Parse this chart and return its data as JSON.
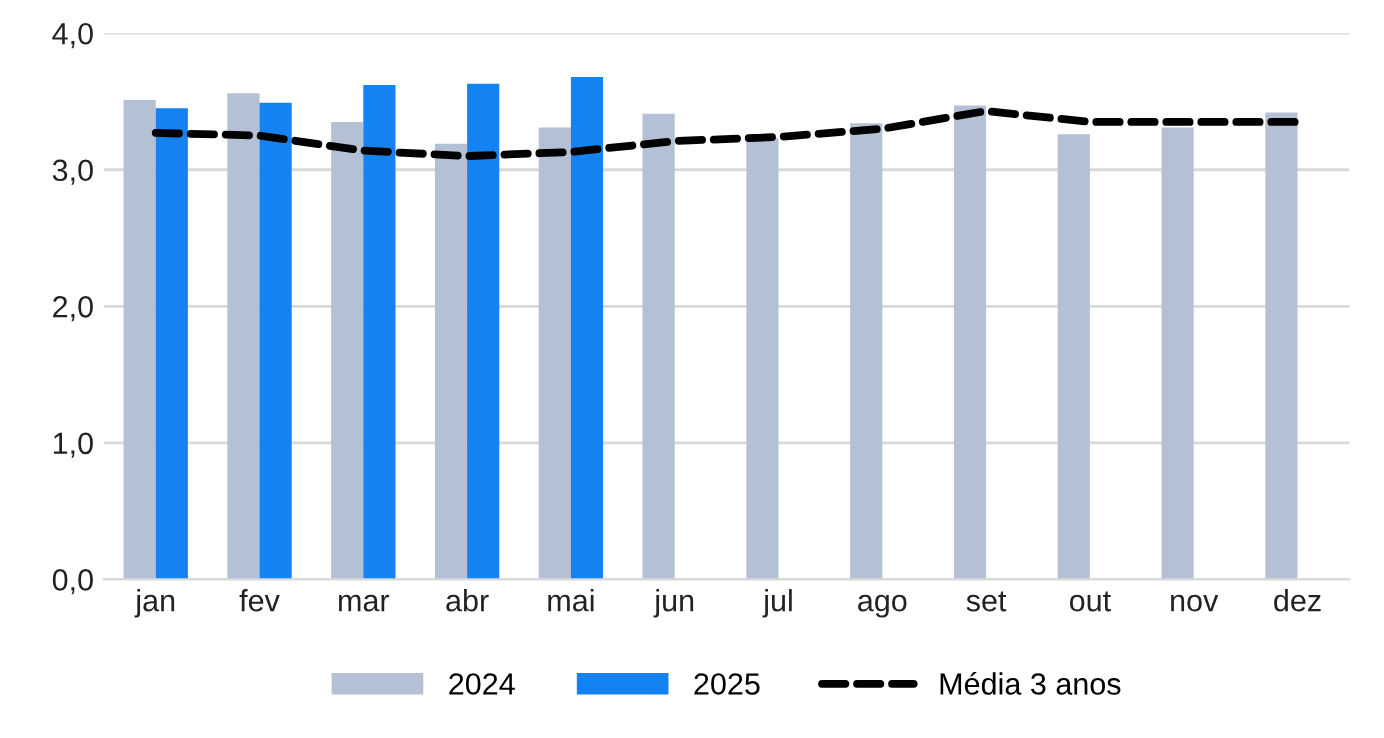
{
  "chart_data": {
    "type": "bar",
    "categories": [
      "jan",
      "fev",
      "mar",
      "abr",
      "mai",
      "jun",
      "jul",
      "ago",
      "set",
      "out",
      "nov",
      "dez"
    ],
    "series": [
      {
        "name": "2024",
        "color": "#b4c0d4",
        "values": [
          3.51,
          3.56,
          3.35,
          3.19,
          3.31,
          3.41,
          3.23,
          3.34,
          3.47,
          3.26,
          3.31,
          3.42
        ]
      },
      {
        "name": "2025",
        "color": "#1482f0",
        "values": [
          3.45,
          3.49,
          3.62,
          3.63,
          3.68,
          null,
          null,
          null,
          null,
          null,
          null,
          null
        ]
      },
      {
        "name": "Média 3 anos",
        "type": "line",
        "color": "#000000",
        "line_style": "dashed",
        "values": [
          3.27,
          3.25,
          3.14,
          3.1,
          3.13,
          3.21,
          3.24,
          3.3,
          3.43,
          3.35,
          3.35,
          3.35
        ]
      }
    ],
    "ylim": [
      0,
      4
    ],
    "yticks": [
      {
        "value": 0,
        "label": "0,0"
      },
      {
        "value": 1,
        "label": "1,0"
      },
      {
        "value": 2,
        "label": "2,0"
      },
      {
        "value": 3,
        "label": "3,0"
      },
      {
        "value": 4,
        "label": "4,0"
      }
    ],
    "grid": "y",
    "legend": "bottom"
  }
}
